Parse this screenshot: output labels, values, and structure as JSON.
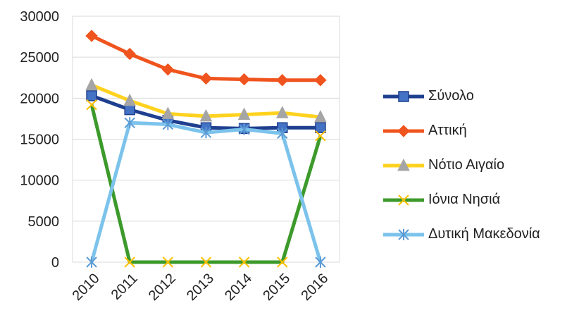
{
  "chart_data": {
    "type": "line",
    "title": "",
    "xlabel": "",
    "ylabel": "",
    "categories": [
      "2010",
      "2011",
      "2012",
      "2013",
      "2014",
      "2015",
      "2016"
    ],
    "ylim": [
      0,
      30000
    ],
    "yticks": [
      0,
      5000,
      10000,
      15000,
      20000,
      25000,
      30000
    ],
    "grid": true,
    "legend": "right",
    "series": [
      {
        "name": "Σύνολο",
        "color": "#1F3F8F",
        "marker": "square",
        "values": [
          20300,
          18600,
          17300,
          16400,
          16300,
          16400,
          16400
        ]
      },
      {
        "name": "Αττική",
        "color": "#F0541E",
        "marker": "diamond",
        "values": [
          27600,
          25400,
          23500,
          22400,
          22300,
          22200,
          22200
        ]
      },
      {
        "name": "Νότιο Αιγαίο",
        "color": "#FFD21F",
        "marker": "triangle",
        "values": [
          21600,
          19700,
          18100,
          17800,
          18000,
          18200,
          17700
        ]
      },
      {
        "name": "Ιόνια Νησιά",
        "color": "#3C9A2B",
        "marker": "x",
        "values": [
          19200,
          0,
          0,
          0,
          0,
          0,
          15400
        ]
      },
      {
        "name": "Δυτική Μακεδονία",
        "color": "#7CC3EC",
        "marker": "asterisk",
        "values": [
          0,
          17000,
          16800,
          15800,
          16200,
          15700,
          0
        ]
      }
    ]
  }
}
